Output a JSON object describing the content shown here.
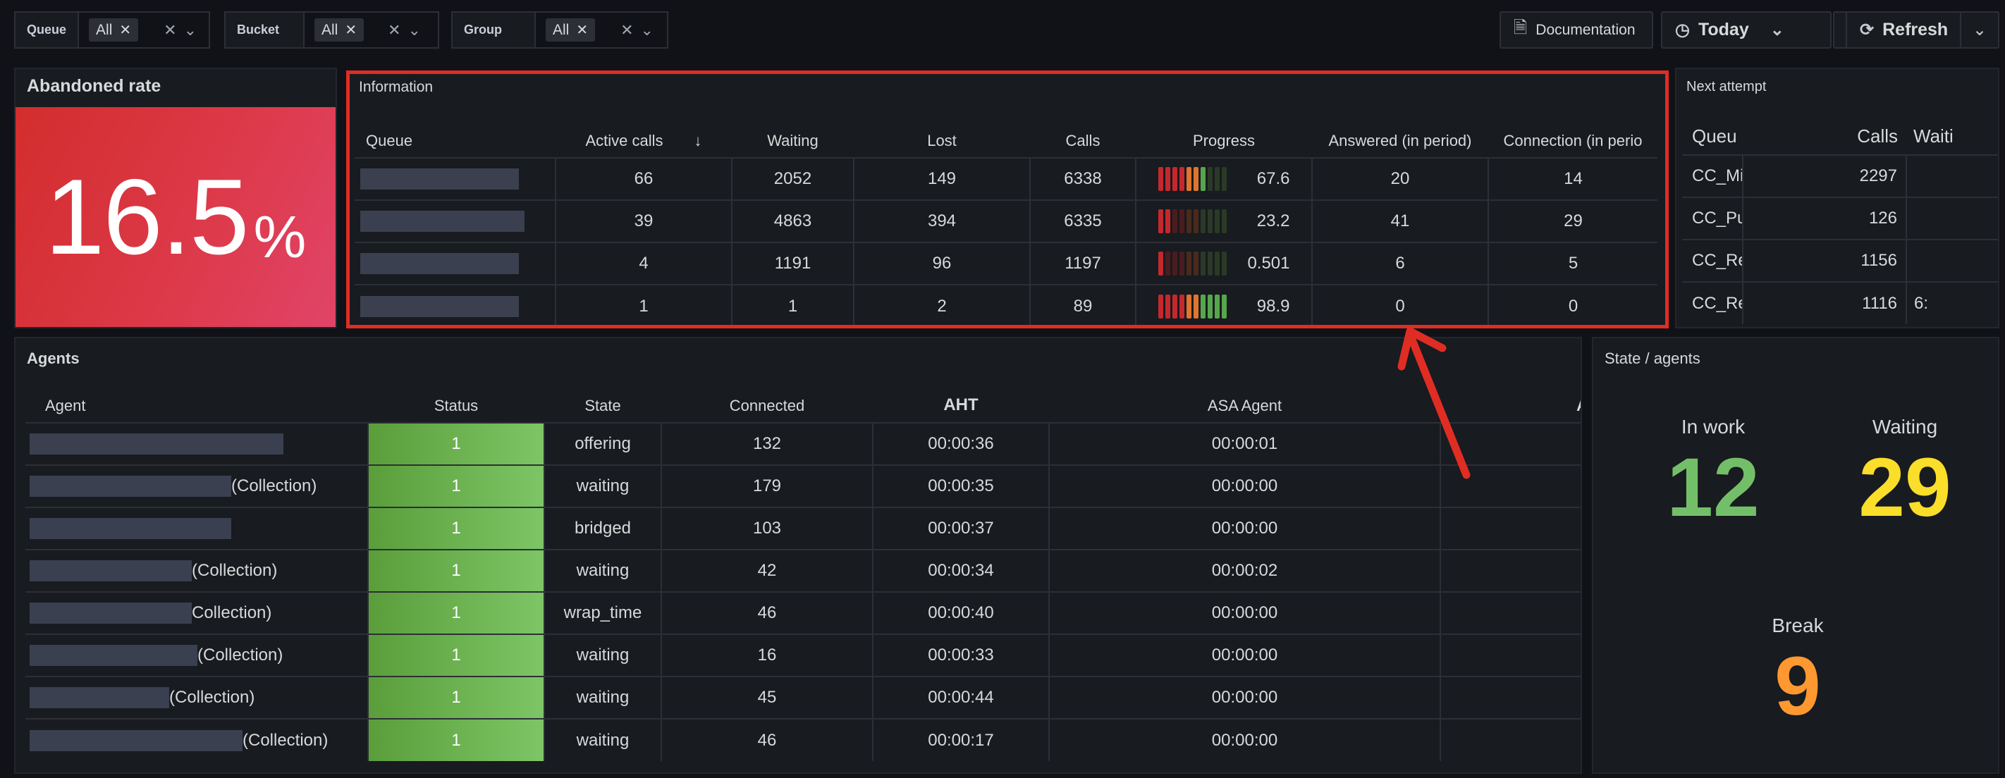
{
  "filters": [
    {
      "label": "Queue",
      "value": "All"
    },
    {
      "label": "Bucket",
      "value": "All"
    },
    {
      "label": "Group",
      "value": "All"
    }
  ],
  "toolbar": {
    "documentation": "Documentation",
    "time_range": "Today",
    "refresh": "Refresh"
  },
  "abandoned": {
    "title": "Abandoned rate",
    "value": "16.5",
    "unit": "%",
    "bg_color": "#d9344a"
  },
  "information": {
    "title": "Information",
    "columns": [
      "Queue",
      "Active calls",
      "Waiting",
      "Lost",
      "Calls",
      "Progress",
      "Answered (in period)",
      "Connection (in perio"
    ],
    "rows": [
      {
        "active": "66",
        "waiting": "2052",
        "lost": "149",
        "calls": "6338",
        "progress": "67.6",
        "progress_fraction": 0.676,
        "answered": "20",
        "connection": "14"
      },
      {
        "active": "39",
        "waiting": "4863",
        "lost": "394",
        "calls": "6335",
        "progress": "23.2",
        "progress_fraction": 0.232,
        "answered": "41",
        "connection": "29"
      },
      {
        "active": "4",
        "waiting": "1191",
        "lost": "96",
        "calls": "1197",
        "progress": "0.501",
        "progress_fraction": 0.005,
        "answered": "6",
        "connection": "5"
      },
      {
        "active": "1",
        "waiting": "1",
        "lost": "2",
        "calls": "89",
        "progress": "98.9",
        "progress_fraction": 0.989,
        "answered": "0",
        "connection": "0"
      }
    ]
  },
  "next_attempt": {
    "title": "Next attempt",
    "columns": [
      "Queu",
      "Calls",
      "Waiti"
    ],
    "rows": [
      {
        "queue": "CC_Mis",
        "calls": "2297",
        "waiting": ""
      },
      {
        "queue": "CC_Pus",
        "calls": "126",
        "waiting": ""
      },
      {
        "queue": "CC_Ret",
        "calls": "1156",
        "waiting": ""
      },
      {
        "queue": "CC_Ret",
        "calls": "1116",
        "waiting": "6:"
      }
    ]
  },
  "agents": {
    "title": "Agents",
    "columns": [
      "Agent",
      "Status",
      "State",
      "Connected",
      "AHT",
      "ASA Agent",
      "A"
    ],
    "rows": [
      {
        "suffix": "",
        "status": "1",
        "state": "offering",
        "connected": "132",
        "aht": "00:00:36",
        "asa": "00:00:01"
      },
      {
        "suffix": "(Collection)",
        "status": "1",
        "state": "waiting",
        "connected": "179",
        "aht": "00:00:35",
        "asa": "00:00:00"
      },
      {
        "suffix": "",
        "status": "1",
        "state": "bridged",
        "connected": "103",
        "aht": "00:00:37",
        "asa": "00:00:00"
      },
      {
        "suffix": "(Collection)",
        "status": "1",
        "state": "waiting",
        "connected": "42",
        "aht": "00:00:34",
        "asa": "00:00:02"
      },
      {
        "suffix": "Collection)",
        "status": "1",
        "state": "wrap_time",
        "connected": "46",
        "aht": "00:00:40",
        "asa": "00:00:00"
      },
      {
        "suffix": "(Collection)",
        "status": "1",
        "state": "waiting",
        "connected": "16",
        "aht": "00:00:33",
        "asa": "00:00:00"
      },
      {
        "suffix": "(Collection)",
        "status": "1",
        "state": "waiting",
        "connected": "45",
        "aht": "00:00:44",
        "asa": "00:00:00"
      },
      {
        "suffix": "(Collection)",
        "status": "1",
        "state": "waiting",
        "connected": "46",
        "aht": "00:00:17",
        "asa": "00:00:00"
      }
    ]
  },
  "state_agents": {
    "title": "State / agents",
    "items": [
      {
        "label": "In work",
        "value": "12",
        "color": "#73bf69"
      },
      {
        "label": "Waiting",
        "value": "29",
        "color": "#fade2a"
      },
      {
        "label": "Break",
        "value": "9",
        "color": "#ff9830"
      }
    ]
  }
}
